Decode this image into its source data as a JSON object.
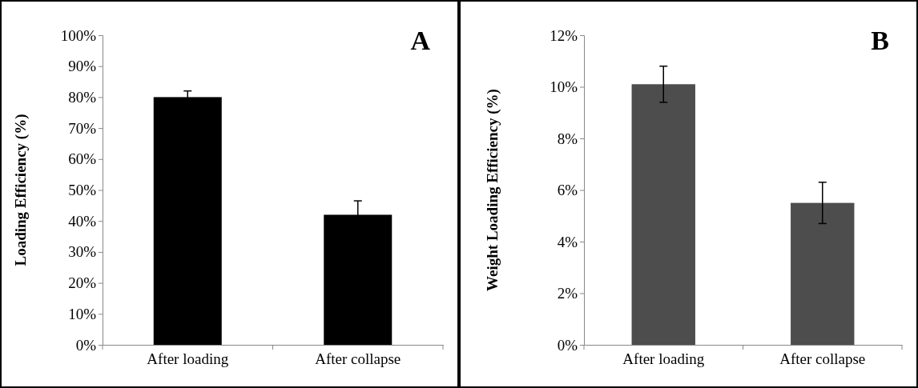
{
  "chart_data": [
    {
      "type": "bar",
      "categories": [
        "After loading",
        "After collapse"
      ],
      "values": [
        80,
        42
      ],
      "errors": [
        2,
        4.5
      ],
      "color": "#000000",
      "ylabel": "Loading Efficiency (%)",
      "annotations": [
        "A"
      ],
      "ylim": [
        0,
        100
      ],
      "yticks": [
        {
          "value": 0,
          "label": "0%"
        },
        {
          "value": 10,
          "label": "10%"
        },
        {
          "value": 20,
          "label": "20%"
        },
        {
          "value": 30,
          "label": "30%"
        },
        {
          "value": 40,
          "label": "40%"
        },
        {
          "value": 50,
          "label": "50%"
        },
        {
          "value": 60,
          "label": "60%"
        },
        {
          "value": 70,
          "label": "70%"
        },
        {
          "value": 80,
          "label": "80%"
        },
        {
          "value": 90,
          "label": "90%"
        },
        {
          "value": 100,
          "label": "100%"
        }
      ]
    },
    {
      "type": "bar",
      "categories": [
        "After loading",
        "After collapse"
      ],
      "values": [
        10.1,
        5.5
      ],
      "errors": [
        0.7,
        0.8
      ],
      "color": "#4d4d4d",
      "ylabel": "Weight Loading Efficiency (%)",
      "annotations": [
        "B"
      ],
      "ylim": [
        0,
        12
      ],
      "yticks": [
        {
          "value": 0,
          "label": "0%"
        },
        {
          "value": 2,
          "label": "2%"
        },
        {
          "value": 4,
          "label": "4%"
        },
        {
          "value": 6,
          "label": "6%"
        },
        {
          "value": 8,
          "label": "8%"
        },
        {
          "value": 10,
          "label": "10%"
        },
        {
          "value": 12,
          "label": "12%"
        }
      ]
    }
  ]
}
